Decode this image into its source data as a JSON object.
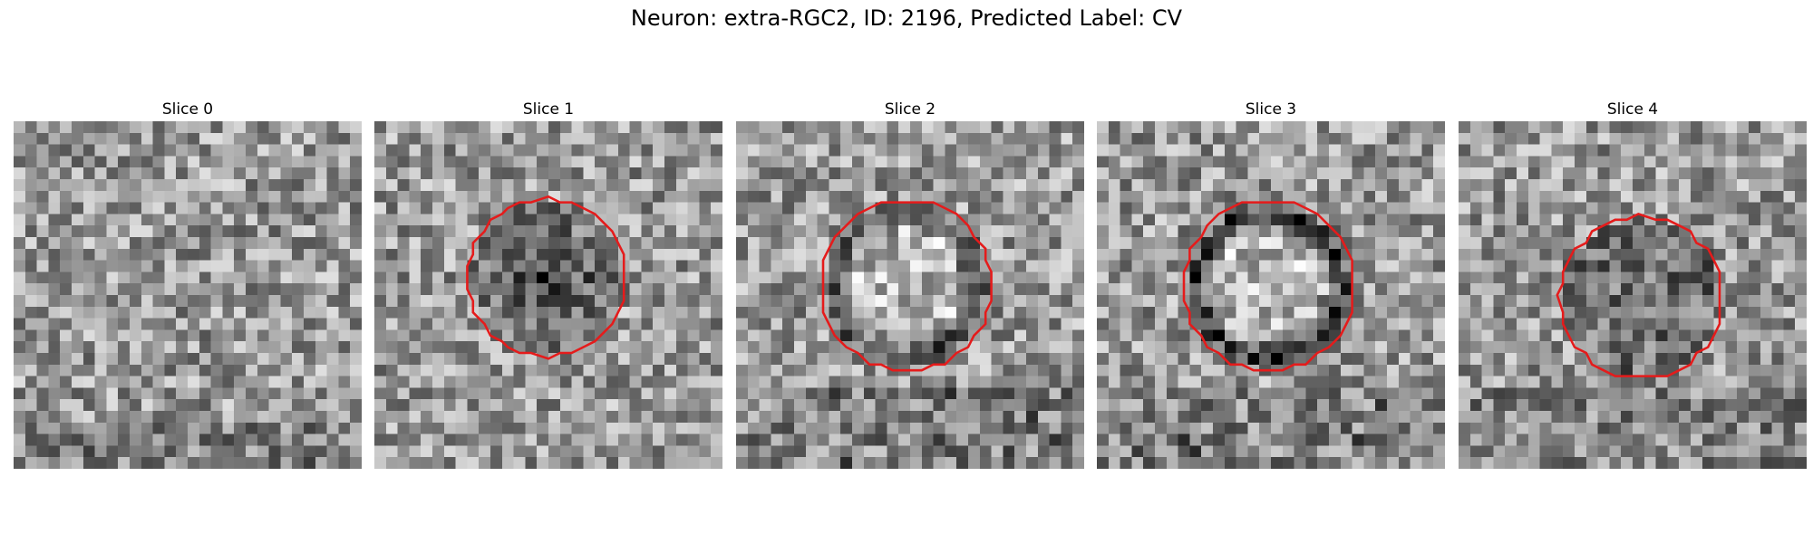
{
  "figure": {
    "title": "Neuron: extra-RGC2, ID: 2196, Predicted Label: CV",
    "colormap": "gray",
    "contour_color": "#e51b1b"
  },
  "panels": [
    {
      "title": "Slice 0",
      "pattern": "noise",
      "contour": null
    },
    {
      "title": "Slice 1",
      "pattern": "dark-blob",
      "contour": {
        "cx": 14.8,
        "cy": 13.5,
        "r": 6.8
      }
    },
    {
      "title": "Slice 2",
      "pattern": "ring",
      "contour": {
        "cx": 14.7,
        "cy": 14.2,
        "r": 7.4
      }
    },
    {
      "title": "Slice 3",
      "pattern": "ring-strong",
      "contour": {
        "cx": 14.8,
        "cy": 14.2,
        "r": 7.4
      }
    },
    {
      "title": "Slice 4",
      "pattern": "dark-blob-faint",
      "contour": {
        "cx": 15.7,
        "cy": 15.2,
        "r": 7.0
      }
    }
  ]
}
